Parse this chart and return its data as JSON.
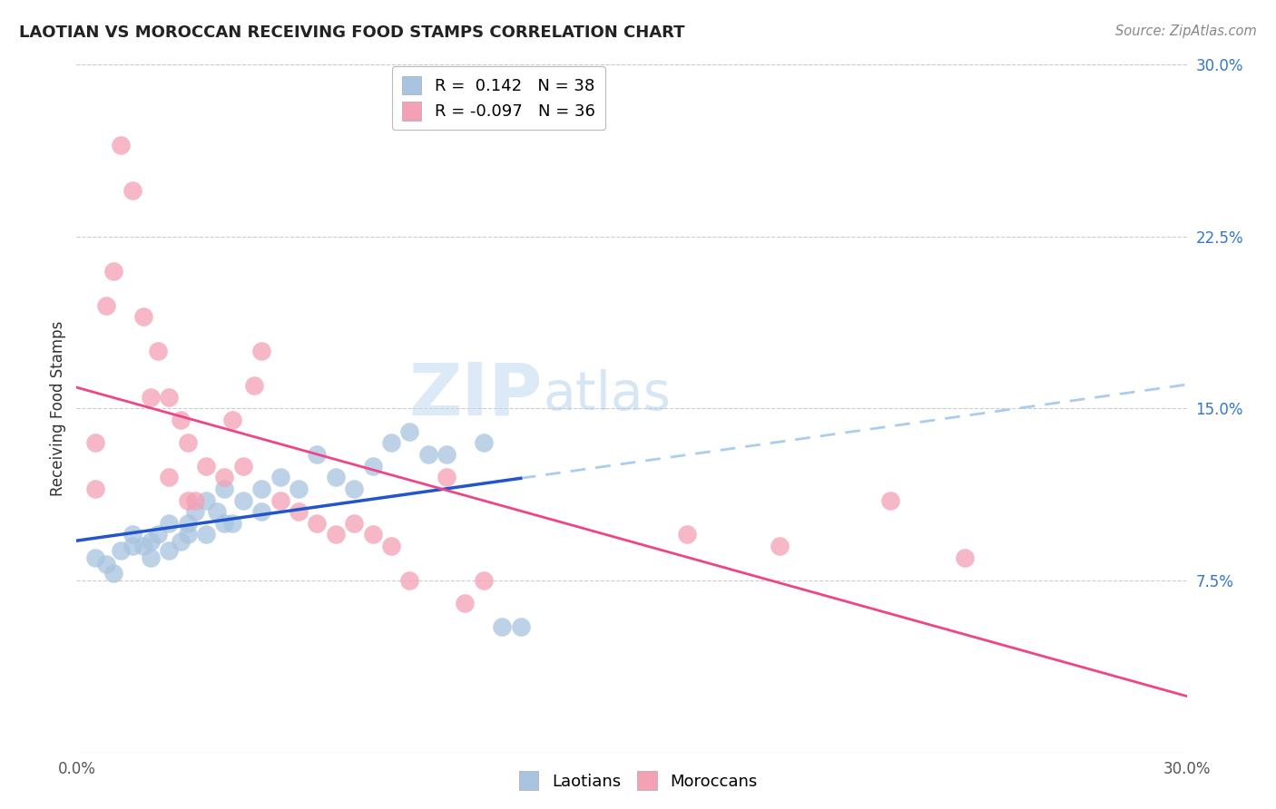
{
  "title": "LAOTIAN VS MOROCCAN RECEIVING FOOD STAMPS CORRELATION CHART",
  "source": "Source: ZipAtlas.com",
  "ylabel": "Receiving Food Stamps",
  "xlim": [
    0.0,
    0.3
  ],
  "ylim": [
    0.0,
    0.3
  ],
  "ytick_labels_right": [
    "7.5%",
    "15.0%",
    "22.5%",
    "30.0%"
  ],
  "ytick_vals_right": [
    0.075,
    0.15,
    0.225,
    0.3
  ],
  "legend_R_blue": " 0.142",
  "legend_N_blue": "38",
  "legend_R_pink": "-0.097",
  "legend_N_pink": "36",
  "blue_color": "#a8c4e0",
  "pink_color": "#f4a0b5",
  "blue_line_color": "#2255cc",
  "pink_line_color": "#ee4488",
  "dashed_line_color": "#aaccee",
  "watermark_zip": "ZIP",
  "watermark_atlas": "atlas",
  "background_color": "#ffffff",
  "laotian_x": [
    0.005,
    0.008,
    0.01,
    0.012,
    0.015,
    0.015,
    0.018,
    0.02,
    0.02,
    0.022,
    0.025,
    0.025,
    0.028,
    0.03,
    0.03,
    0.032,
    0.035,
    0.035,
    0.038,
    0.04,
    0.04,
    0.042,
    0.045,
    0.05,
    0.05,
    0.055,
    0.06,
    0.065,
    0.07,
    0.075,
    0.08,
    0.085,
    0.09,
    0.095,
    0.1,
    0.11,
    0.115,
    0.12
  ],
  "laotian_y": [
    0.085,
    0.082,
    0.078,
    0.088,
    0.09,
    0.095,
    0.09,
    0.092,
    0.085,
    0.095,
    0.088,
    0.1,
    0.092,
    0.095,
    0.1,
    0.105,
    0.095,
    0.11,
    0.105,
    0.1,
    0.115,
    0.1,
    0.11,
    0.115,
    0.105,
    0.12,
    0.115,
    0.13,
    0.12,
    0.115,
    0.125,
    0.135,
    0.14,
    0.13,
    0.13,
    0.135,
    0.055,
    0.055
  ],
  "moroccan_x": [
    0.005,
    0.005,
    0.008,
    0.01,
    0.012,
    0.015,
    0.018,
    0.02,
    0.022,
    0.025,
    0.025,
    0.028,
    0.03,
    0.03,
    0.032,
    0.035,
    0.04,
    0.042,
    0.045,
    0.048,
    0.05,
    0.055,
    0.06,
    0.065,
    0.07,
    0.075,
    0.08,
    0.085,
    0.09,
    0.1,
    0.105,
    0.11,
    0.165,
    0.19,
    0.22,
    0.24
  ],
  "moroccan_y": [
    0.135,
    0.115,
    0.195,
    0.21,
    0.265,
    0.245,
    0.19,
    0.155,
    0.175,
    0.155,
    0.12,
    0.145,
    0.11,
    0.135,
    0.11,
    0.125,
    0.12,
    0.145,
    0.125,
    0.16,
    0.175,
    0.11,
    0.105,
    0.1,
    0.095,
    0.1,
    0.095,
    0.09,
    0.075,
    0.12,
    0.065,
    0.075,
    0.095,
    0.09,
    0.11,
    0.085
  ]
}
